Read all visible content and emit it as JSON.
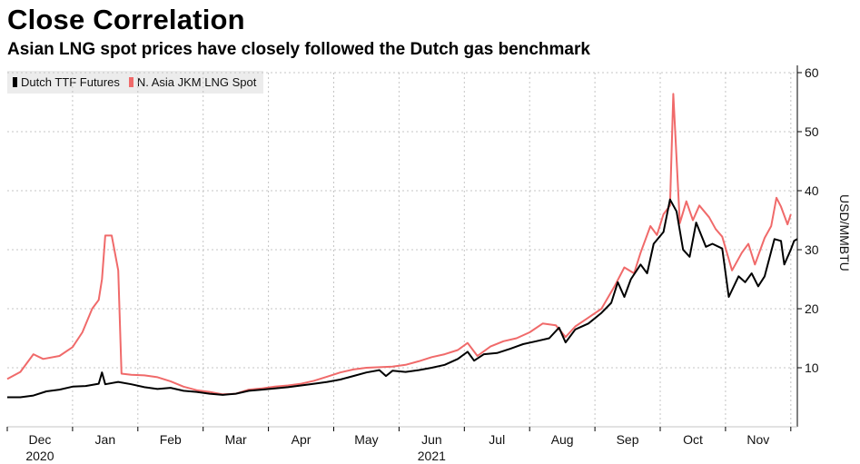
{
  "chart_data": {
    "type": "line",
    "title": "Close Correlation",
    "subtitle": "Asian LNG spot prices have closely followed the Dutch gas benchmark",
    "ylabel": "USD/MMBTU",
    "ylim": [
      0,
      60
    ],
    "yticks": [
      10,
      20,
      30,
      40,
      50,
      60
    ],
    "xlim": [
      0,
      12.1
    ],
    "x_tick_labels": [
      {
        "label": "Dec",
        "x": 0.5
      },
      {
        "label": "Jan",
        "x": 1.5
      },
      {
        "label": "Feb",
        "x": 2.5
      },
      {
        "label": "Mar",
        "x": 3.5
      },
      {
        "label": "Apr",
        "x": 4.5
      },
      {
        "label": "May",
        "x": 5.5
      },
      {
        "label": "Jun",
        "x": 6.5
      },
      {
        "label": "Jul",
        "x": 7.5
      },
      {
        "label": "Aug",
        "x": 8.5
      },
      {
        "label": "Sep",
        "x": 9.5
      },
      {
        "label": "Oct",
        "x": 10.5
      },
      {
        "label": "Nov",
        "x": 11.5
      }
    ],
    "year_labels": [
      {
        "label": "2020",
        "x": 0.5
      },
      {
        "label": "2021",
        "x": 6.5
      }
    ],
    "legend_position": "top-left",
    "series": [
      {
        "name": "Dutch TTF Futures",
        "color": "#000000",
        "points": [
          [
            0.0,
            5.0
          ],
          [
            0.2,
            5.0
          ],
          [
            0.4,
            5.3
          ],
          [
            0.6,
            6.0
          ],
          [
            0.8,
            6.3
          ],
          [
            1.0,
            6.8
          ],
          [
            1.2,
            6.9
          ],
          [
            1.4,
            7.3
          ],
          [
            1.45,
            9.2
          ],
          [
            1.5,
            7.2
          ],
          [
            1.7,
            7.6
          ],
          [
            1.9,
            7.2
          ],
          [
            2.1,
            6.7
          ],
          [
            2.3,
            6.4
          ],
          [
            2.5,
            6.6
          ],
          [
            2.7,
            6.1
          ],
          [
            2.9,
            5.9
          ],
          [
            3.1,
            5.6
          ],
          [
            3.3,
            5.4
          ],
          [
            3.5,
            5.6
          ],
          [
            3.7,
            6.1
          ],
          [
            3.9,
            6.3
          ],
          [
            4.1,
            6.5
          ],
          [
            4.3,
            6.7
          ],
          [
            4.5,
            7.0
          ],
          [
            4.7,
            7.3
          ],
          [
            4.9,
            7.6
          ],
          [
            5.1,
            8.0
          ],
          [
            5.3,
            8.6
          ],
          [
            5.5,
            9.2
          ],
          [
            5.7,
            9.6
          ],
          [
            5.8,
            8.6
          ],
          [
            5.9,
            9.5
          ],
          [
            6.1,
            9.3
          ],
          [
            6.3,
            9.6
          ],
          [
            6.5,
            10.0
          ],
          [
            6.7,
            10.5
          ],
          [
            6.9,
            11.5
          ],
          [
            7.05,
            12.7
          ],
          [
            7.15,
            11.2
          ],
          [
            7.3,
            12.3
          ],
          [
            7.5,
            12.5
          ],
          [
            7.7,
            13.2
          ],
          [
            7.9,
            14.0
          ],
          [
            8.1,
            14.5
          ],
          [
            8.3,
            15.0
          ],
          [
            8.45,
            16.8
          ],
          [
            8.55,
            14.3
          ],
          [
            8.7,
            16.5
          ],
          [
            8.9,
            17.5
          ],
          [
            9.1,
            19.3
          ],
          [
            9.25,
            21.0
          ],
          [
            9.35,
            24.5
          ],
          [
            9.45,
            22.0
          ],
          [
            9.55,
            25.0
          ],
          [
            9.7,
            27.5
          ],
          [
            9.8,
            26.0
          ],
          [
            9.9,
            31.0
          ],
          [
            10.05,
            33.0
          ],
          [
            10.15,
            38.5
          ],
          [
            10.25,
            36.5
          ],
          [
            10.35,
            30.0
          ],
          [
            10.45,
            28.8
          ],
          [
            10.55,
            34.6
          ],
          [
            10.7,
            30.5
          ],
          [
            10.8,
            31.0
          ],
          [
            10.95,
            30.2
          ],
          [
            11.05,
            22.0
          ],
          [
            11.2,
            25.5
          ],
          [
            11.3,
            24.5
          ],
          [
            11.4,
            26.0
          ],
          [
            11.5,
            23.8
          ],
          [
            11.6,
            25.5
          ],
          [
            11.75,
            31.8
          ],
          [
            11.85,
            31.5
          ],
          [
            11.9,
            27.5
          ],
          [
            12.0,
            30.0
          ],
          [
            12.05,
            31.5
          ],
          [
            12.1,
            31.8
          ]
        ]
      },
      {
        "name": "N. Asia JKM LNG Spot",
        "color": "#f06a6a",
        "points": [
          [
            0.0,
            8.1
          ],
          [
            0.2,
            9.3
          ],
          [
            0.4,
            12.3
          ],
          [
            0.55,
            11.5
          ],
          [
            0.8,
            12.0
          ],
          [
            1.0,
            13.5
          ],
          [
            1.15,
            16.0
          ],
          [
            1.3,
            20.0
          ],
          [
            1.4,
            21.5
          ],
          [
            1.45,
            25.0
          ],
          [
            1.5,
            32.4
          ],
          [
            1.6,
            32.4
          ],
          [
            1.7,
            26.5
          ],
          [
            1.75,
            9.0
          ],
          [
            1.9,
            8.8
          ],
          [
            2.1,
            8.7
          ],
          [
            2.3,
            8.4
          ],
          [
            2.5,
            7.7
          ],
          [
            2.7,
            6.8
          ],
          [
            2.9,
            6.2
          ],
          [
            3.1,
            5.9
          ],
          [
            3.3,
            5.5
          ],
          [
            3.5,
            5.6
          ],
          [
            3.7,
            6.3
          ],
          [
            3.9,
            6.5
          ],
          [
            4.1,
            6.8
          ],
          [
            4.3,
            7.0
          ],
          [
            4.5,
            7.3
          ],
          [
            4.7,
            7.8
          ],
          [
            4.9,
            8.5
          ],
          [
            5.1,
            9.2
          ],
          [
            5.3,
            9.7
          ],
          [
            5.5,
            10.0
          ],
          [
            5.7,
            10.1
          ],
          [
            5.9,
            10.2
          ],
          [
            6.1,
            10.5
          ],
          [
            6.3,
            11.1
          ],
          [
            6.5,
            11.8
          ],
          [
            6.7,
            12.3
          ],
          [
            6.9,
            13.0
          ],
          [
            7.05,
            14.2
          ],
          [
            7.2,
            12.0
          ],
          [
            7.4,
            13.6
          ],
          [
            7.6,
            14.5
          ],
          [
            7.8,
            15.0
          ],
          [
            8.0,
            16.0
          ],
          [
            8.2,
            17.5
          ],
          [
            8.4,
            17.2
          ],
          [
            8.55,
            15.2
          ],
          [
            8.7,
            17.0
          ],
          [
            8.9,
            18.5
          ],
          [
            9.1,
            20.0
          ],
          [
            9.3,
            23.8
          ],
          [
            9.45,
            27.0
          ],
          [
            9.6,
            26.0
          ],
          [
            9.7,
            29.5
          ],
          [
            9.85,
            34.0
          ],
          [
            9.95,
            32.5
          ],
          [
            10.05,
            36.0
          ],
          [
            10.15,
            37.5
          ],
          [
            10.2,
            56.4
          ],
          [
            10.3,
            34.5
          ],
          [
            10.4,
            38.2
          ],
          [
            10.5,
            35.0
          ],
          [
            10.6,
            37.5
          ],
          [
            10.75,
            35.5
          ],
          [
            10.85,
            33.5
          ],
          [
            10.95,
            32.2
          ],
          [
            11.1,
            26.5
          ],
          [
            11.25,
            29.5
          ],
          [
            11.35,
            31.0
          ],
          [
            11.45,
            27.5
          ],
          [
            11.6,
            32.0
          ],
          [
            11.7,
            34.0
          ],
          [
            11.78,
            38.8
          ],
          [
            11.85,
            37.3
          ],
          [
            11.95,
            34.3
          ],
          [
            12.0,
            36.0
          ]
        ]
      }
    ]
  }
}
